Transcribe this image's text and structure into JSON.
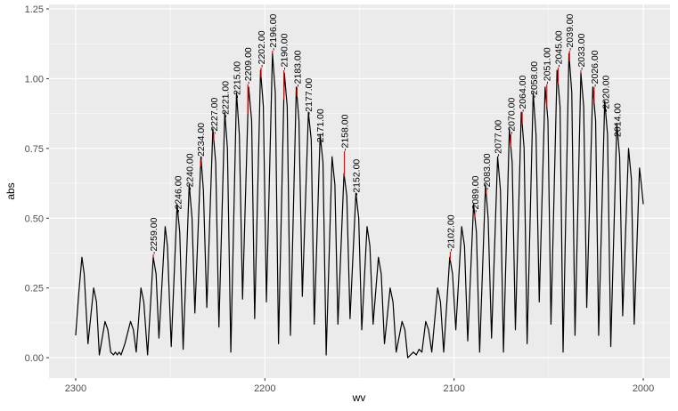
{
  "chart_data": {
    "type": "line",
    "x_label": "wv",
    "y_label": "abs",
    "xlim": [
      2314.1,
      1985.9
    ],
    "ylim": [
      -0.073,
      1.266
    ],
    "xticks": [
      2300,
      2200,
      2100,
      2000
    ],
    "yticks": [
      {
        "value": 0,
        "label": "0.00"
      },
      {
        "value": 0.25,
        "label": "0.25"
      },
      {
        "value": 0.5,
        "label": "0.50"
      },
      {
        "value": 0.75,
        "label": "0.75"
      },
      {
        "value": 1,
        "label": "1.00"
      },
      {
        "value": 1.25,
        "label": "1.25"
      }
    ],
    "grid": true,
    "background": "#ebebeb",
    "line_color": "#000000",
    "label_line_color": "#ff0000",
    "x": [
      2300,
      2298.5,
      2296.7,
      2295.5,
      2293.5,
      2290.5,
      2289,
      2287.5,
      2284.5,
      2283,
      2281.5,
      2280,
      2279,
      2278,
      2277,
      2276,
      2275,
      2274,
      2271,
      2269.5,
      2268,
      2265.5,
      2264,
      2262,
      2259,
      2257.5,
      2256,
      2252.7,
      2251.5,
      2249.5,
      2246.4,
      2245,
      2243.2,
      2240,
      2238.5,
      2237,
      2233.8,
      2232.5,
      2230.7,
      2227.5,
      2226,
      2224.3,
      2221.2,
      2219.8,
      2218,
      2215,
      2213.5,
      2211.8,
      2208.6,
      2207,
      2205.4,
      2202.3,
      2200.8,
      2199.2,
      2196,
      2194.5,
      2192.8,
      2189.7,
      2188.2,
      2186.5,
      2183.4,
      2182,
      2180.2,
      2177,
      2175.5,
      2173.9,
      2170.8,
      2169.3,
      2167.6,
      2164.5,
      2163,
      2161.4,
      2158.2,
      2156.7,
      2155,
      2151.9,
      2150.4,
      2148.8,
      2146,
      2144.5,
      2142.8,
      2140,
      2138.5,
      2136.8,
      2133.8,
      2132.3,
      2130.6,
      2127.5,
      2126,
      2124.5,
      2123,
      2121.5,
      2120,
      2118.5,
      2117,
      2115,
      2113.5,
      2111.8,
      2108.7,
      2107.2,
      2105.5,
      2102.3,
      2100.8,
      2099.1,
      2096,
      2094.5,
      2092.8,
      2089.7,
      2088.2,
      2086.5,
      2083.4,
      2082,
      2080.2,
      2077,
      2075.5,
      2073.9,
      2070.8,
      2069.3,
      2067.6,
      2064.5,
      2063,
      2061.4,
      2058.2,
      2056.7,
      2055,
      2051.9,
      2050.4,
      2048.8,
      2045.6,
      2044,
      2042.4,
      2039.3,
      2037.8,
      2036.1,
      2033,
      2031.5,
      2029.9,
      2026.7,
      2025.2,
      2023.6,
      2020.4,
      2018.9,
      2017.2,
      2014,
      2012.5,
      2010.9,
      2007.8,
      2006.3,
      2004.8,
      2002,
      2001,
      2000
    ],
    "values": [
      0.08,
      0.22,
      0.36,
      0.3,
      0.05,
      0.25,
      0.2,
      0.01,
      0.13,
      0.1,
      0.02,
      0.01,
      0.02,
      0.01,
      0.02,
      0.01,
      0.03,
      0.05,
      0.13,
      0.1,
      0.02,
      0.25,
      0.2,
      0.01,
      0.36,
      0.3,
      0.07,
      0.47,
      0.4,
      0.04,
      0.55,
      0.45,
      0.03,
      0.62,
      0.5,
      0.16,
      0.72,
      0.6,
      0.18,
      0.82,
      0.7,
      0.11,
      0.88,
      0.75,
      0.02,
      0.95,
      0.8,
      0.21,
      0.97,
      0.85,
      0.14,
      1.03,
      0.9,
      0.2,
      1.09,
      0.95,
      0.05,
      1.02,
      0.9,
      0.08,
      0.97,
      0.85,
      0.22,
      0.88,
      0.78,
      0.12,
      0.8,
      0.7,
      0.01,
      0.72,
      0.62,
      0.12,
      0.66,
      0.58,
      0.14,
      0.59,
      0.5,
      0.1,
      0.47,
      0.4,
      0.12,
      0.36,
      0.3,
      0.05,
      0.25,
      0.2,
      0.02,
      0.13,
      0.1,
      0.0,
      0.01,
      0.02,
      0.01,
      0.03,
      0.02,
      0.13,
      0.1,
      0.02,
      0.25,
      0.2,
      0.02,
      0.36,
      0.3,
      0.1,
      0.47,
      0.4,
      0.06,
      0.55,
      0.45,
      0.02,
      0.62,
      0.5,
      0.07,
      0.72,
      0.6,
      0.02,
      0.82,
      0.7,
      0.1,
      0.88,
      0.75,
      0.05,
      0.95,
      0.8,
      0.2,
      0.97,
      0.85,
      0.12,
      1.03,
      0.9,
      0.02,
      1.09,
      0.95,
      0.08,
      1.02,
      0.9,
      0.18,
      0.97,
      0.85,
      0.08,
      0.92,
      0.8,
      0.04,
      0.84,
      0.72,
      0.15,
      0.75,
      0.64,
      0.12,
      0.68,
      0.62,
      0.55
    ],
    "annotations": [
      {
        "x": 2259,
        "y": 0.37,
        "label": "-2259.00"
      },
      {
        "x": 2246,
        "y": 0.52,
        "label": "-2246.00"
      },
      {
        "x": 2240,
        "y": 0.6,
        "label": "-2240.00"
      },
      {
        "x": 2234,
        "y": 0.71,
        "label": "-2234.00"
      },
      {
        "x": 2227,
        "y": 0.8,
        "label": "-2227.00"
      },
      {
        "x": 2221,
        "y": 0.86,
        "label": "-2221.00"
      },
      {
        "x": 2215,
        "y": 0.93,
        "label": "-2215.00"
      },
      {
        "x": 2209,
        "y": 0.98,
        "label": "-2209.00"
      },
      {
        "x": 2202,
        "y": 1.04,
        "label": "-2202.00"
      },
      {
        "x": 2196,
        "y": 1.1,
        "label": "-2196.00"
      },
      {
        "x": 2190,
        "y": 1.03,
        "label": "-2190.00"
      },
      {
        "x": 2183,
        "y": 0.97,
        "label": "-2183.00"
      },
      {
        "x": 2177,
        "y": 0.87,
        "label": "-2177.00"
      },
      {
        "x": 2171,
        "y": 0.76,
        "label": "-2171.00"
      },
      {
        "x": 2158,
        "y": 0.74,
        "label": "-2158.00"
      },
      {
        "x": 2152,
        "y": 0.58,
        "label": "-2152.00"
      },
      {
        "x": 2102,
        "y": 0.38,
        "label": "-2102.00"
      },
      {
        "x": 2089,
        "y": 0.52,
        "label": "-2089.00"
      },
      {
        "x": 2083,
        "y": 0.6,
        "label": "-2083.00"
      },
      {
        "x": 2077,
        "y": 0.72,
        "label": "-2077.00"
      },
      {
        "x": 2070,
        "y": 0.8,
        "label": "-2070.00"
      },
      {
        "x": 2064,
        "y": 0.88,
        "label": "-2064.00"
      },
      {
        "x": 2058,
        "y": 0.93,
        "label": "-2058.00"
      },
      {
        "x": 2051,
        "y": 0.98,
        "label": "-2051.00"
      },
      {
        "x": 2045,
        "y": 1.04,
        "label": "-2045.00"
      },
      {
        "x": 2039,
        "y": 1.1,
        "label": "-2039.00"
      },
      {
        "x": 2033,
        "y": 1.03,
        "label": "-2033.00"
      },
      {
        "x": 2026,
        "y": 0.97,
        "label": "-2026.00"
      },
      {
        "x": 2020,
        "y": 0.88,
        "label": "-2020.00"
      },
      {
        "x": 2014,
        "y": 0.78,
        "label": "-2014.00"
      }
    ]
  }
}
